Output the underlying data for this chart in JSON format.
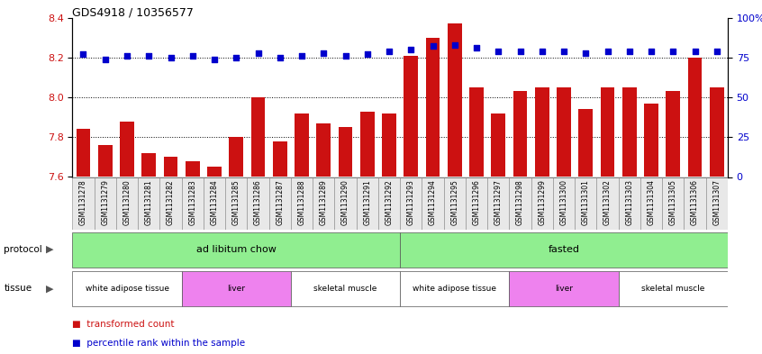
{
  "title": "GDS4918 / 10356577",
  "samples": [
    "GSM1131278",
    "GSM1131279",
    "GSM1131280",
    "GSM1131281",
    "GSM1131282",
    "GSM1131283",
    "GSM1131284",
    "GSM1131285",
    "GSM1131286",
    "GSM1131287",
    "GSM1131288",
    "GSM1131289",
    "GSM1131290",
    "GSM1131291",
    "GSM1131292",
    "GSM1131293",
    "GSM1131294",
    "GSM1131295",
    "GSM1131296",
    "GSM1131297",
    "GSM1131298",
    "GSM1131299",
    "GSM1131300",
    "GSM1131301",
    "GSM1131302",
    "GSM1131303",
    "GSM1131304",
    "GSM1131305",
    "GSM1131306",
    "GSM1131307"
  ],
  "bar_values": [
    7.84,
    7.76,
    7.88,
    7.72,
    7.7,
    7.68,
    7.65,
    7.8,
    8.0,
    7.78,
    7.92,
    7.87,
    7.85,
    7.93,
    7.92,
    8.21,
    8.3,
    8.37,
    8.05,
    7.92,
    8.03,
    8.05,
    8.05,
    7.94,
    8.05,
    8.05,
    7.97,
    8.03,
    8.2,
    8.05
  ],
  "percentile_values": [
    77,
    74,
    76,
    76,
    75,
    76,
    74,
    75,
    78,
    75,
    76,
    78,
    76,
    77,
    79,
    80,
    82,
    83,
    81,
    79,
    79,
    79,
    79,
    78,
    79,
    79,
    79,
    79,
    79,
    79
  ],
  "ylim_left": [
    7.6,
    8.4
  ],
  "ylim_right": [
    0,
    100
  ],
  "yticks_left": [
    7.6,
    7.8,
    8.0,
    8.2,
    8.4
  ],
  "yticks_right": [
    0,
    25,
    50,
    75,
    100
  ],
  "bar_color": "#cc1111",
  "dot_color": "#0000cc",
  "background_color": "#e8e8e8",
  "protocol_labels": [
    "ad libitum chow",
    "fasted"
  ],
  "protocol_col_count": [
    15,
    15
  ],
  "protocol_color": "#90ee90",
  "tissue_groups": [
    {
      "label": "white adipose tissue",
      "col_count": 5,
      "color": "#ffffff"
    },
    {
      "label": "liver",
      "col_count": 5,
      "color": "#ee82ee"
    },
    {
      "label": "skeletal muscle",
      "col_count": 5,
      "color": "#ffffff"
    },
    {
      "label": "white adipose tissue",
      "col_count": 5,
      "color": "#ffffff"
    },
    {
      "label": "liver",
      "col_count": 5,
      "color": "#ee82ee"
    },
    {
      "label": "skeletal muscle",
      "col_count": 5,
      "color": "#ffffff"
    }
  ],
  "legend_items": [
    {
      "label": "transformed count",
      "color": "#cc1111"
    },
    {
      "label": "percentile rank within the sample",
      "color": "#0000cc"
    }
  ]
}
